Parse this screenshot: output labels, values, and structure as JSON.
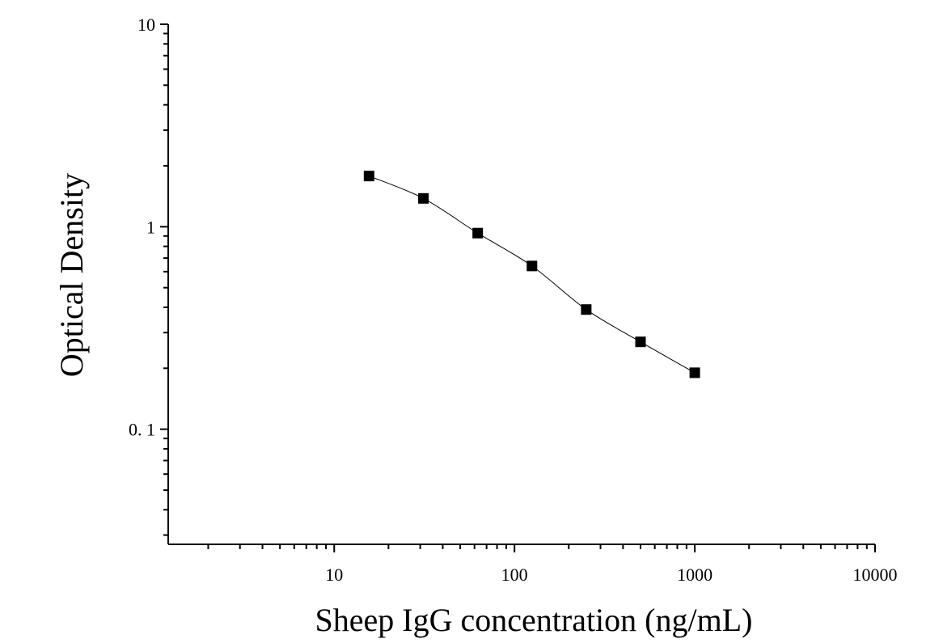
{
  "chart_data": {
    "type": "scatter",
    "x_scale": "log",
    "y_scale": "log",
    "xlabel": "Sheep IgG concentration (ng/mL)",
    "ylabel": "Optical Density",
    "xlim": [
      1.2,
      10000
    ],
    "ylim": [
      0.027,
      10
    ],
    "x_tick_labels": [
      {
        "value": 10,
        "label": "10"
      },
      {
        "value": 100,
        "label": "100"
      },
      {
        "value": 1000,
        "label": "1000"
      },
      {
        "value": 10000,
        "label": "10000"
      }
    ],
    "y_tick_labels": [
      {
        "value": 10,
        "label": "10"
      },
      {
        "value": 1,
        "label": "1"
      },
      {
        "value": 0.1,
        "label": "0. 1"
      }
    ],
    "series": [
      {
        "marker": "square",
        "color": "#000000",
        "points": [
          {
            "x": 15.6,
            "y": 1.78
          },
          {
            "x": 31.25,
            "y": 1.38
          },
          {
            "x": 62.5,
            "y": 0.93
          },
          {
            "x": 125,
            "y": 0.64
          },
          {
            "x": 250,
            "y": 0.39
          },
          {
            "x": 500,
            "y": 0.27
          },
          {
            "x": 1000,
            "y": 0.19
          }
        ]
      }
    ],
    "fit_curve": true,
    "grid": false,
    "legend": "none"
  }
}
